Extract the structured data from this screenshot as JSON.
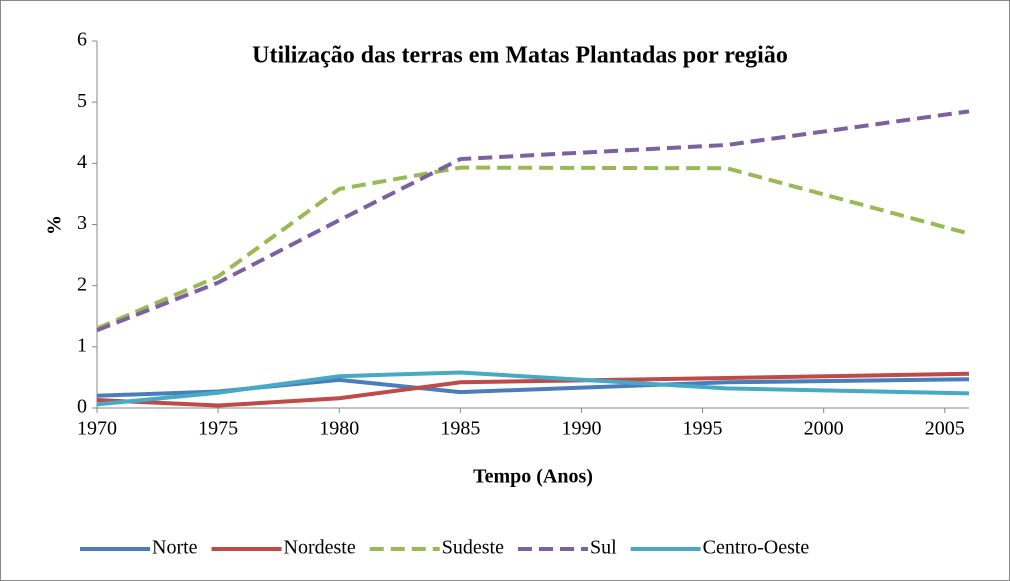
{
  "chart_data": {
    "type": "line",
    "title": "Utilização das terras em Matas Plantadas por região",
    "x_label": "Tempo (Anos)",
    "y_label": "%",
    "x": [
      1970,
      1975,
      1980,
      1985,
      1996,
      2006
    ],
    "xlim": [
      1970,
      2006
    ],
    "xticks": [
      1970,
      1975,
      1980,
      1985,
      1990,
      1995,
      2000,
      2005
    ],
    "ylim": [
      0,
      6
    ],
    "yticks": [
      0,
      1,
      2,
      3,
      4,
      5,
      6
    ],
    "legend": "bottom",
    "series": [
      {
        "name": "Norte",
        "color": "#4a7ebb",
        "dash": false,
        "values": [
          0.2,
          0.27,
          0.46,
          0.26,
          0.42,
          0.47
        ]
      },
      {
        "name": "Nordeste",
        "color": "#be4b48",
        "dash": false,
        "values": [
          0.13,
          0.04,
          0.16,
          0.42,
          0.49,
          0.56
        ]
      },
      {
        "name": "Sudeste",
        "color": "#98b954",
        "dash": true,
        "values": [
          1.3,
          2.15,
          3.58,
          3.93,
          3.92,
          2.85
        ]
      },
      {
        "name": "Sul",
        "color": "#7d60a0",
        "dash": true,
        "values": [
          1.27,
          2.05,
          3.07,
          4.07,
          4.3,
          4.85
        ]
      },
      {
        "name": "Centro-Oeste",
        "color": "#46aac5",
        "dash": false,
        "values": [
          0.06,
          0.25,
          0.52,
          0.58,
          0.32,
          0.24
        ]
      }
    ]
  }
}
